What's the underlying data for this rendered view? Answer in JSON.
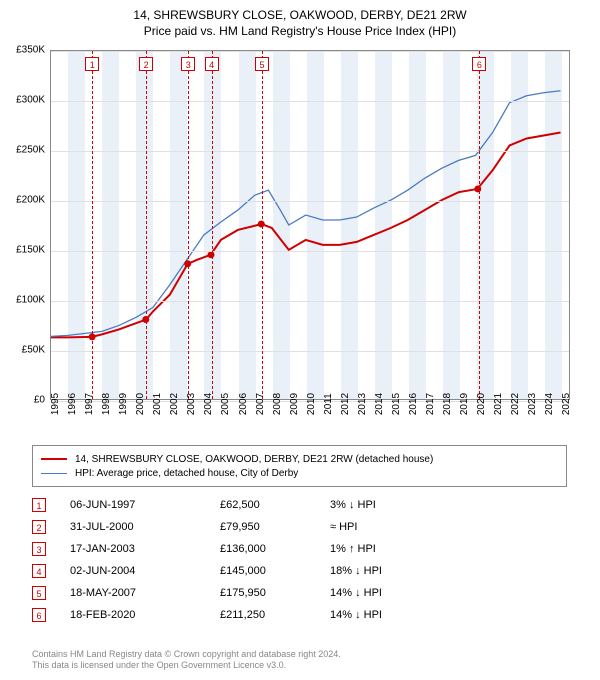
{
  "title_line1": "14, SHREWSBURY CLOSE, OAKWOOD, DERBY, DE21 2RW",
  "title_line2": "Price paid vs. HM Land Registry's House Price Index (HPI)",
  "chart": {
    "type": "line",
    "x_years": [
      1995,
      1996,
      1997,
      1998,
      1999,
      2000,
      2001,
      2002,
      2003,
      2004,
      2005,
      2006,
      2007,
      2008,
      2009,
      2010,
      2011,
      2012,
      2013,
      2014,
      2015,
      2016,
      2017,
      2018,
      2019,
      2020,
      2021,
      2022,
      2023,
      2024,
      2025
    ],
    "xlim": [
      1995,
      2025.5
    ],
    "ylim": [
      0,
      350000
    ],
    "ytick_step": 50000,
    "ytick_labels": [
      "£0",
      "£50K",
      "£100K",
      "£150K",
      "£200K",
      "£250K",
      "£300K",
      "£350K"
    ],
    "background_color": "#ffffff",
    "grid_color": "#e0e0e0",
    "band_color": "#eaf0f8",
    "band_years": [
      [
        1996,
        1997
      ],
      [
        1998,
        1999
      ],
      [
        2000,
        2001
      ],
      [
        2002,
        2003
      ],
      [
        2004,
        2005
      ],
      [
        2006,
        2007
      ],
      [
        2008,
        2009
      ],
      [
        2010,
        2011
      ],
      [
        2012,
        2013
      ],
      [
        2014,
        2015
      ],
      [
        2016,
        2017
      ],
      [
        2018,
        2019
      ],
      [
        2020,
        2021
      ],
      [
        2022,
        2023
      ],
      [
        2024,
        2025
      ]
    ],
    "series": [
      {
        "name": "property",
        "color": "#d00000",
        "width": 2,
        "points": [
          [
            1995,
            62000
          ],
          [
            1996,
            62000
          ],
          [
            1997.4,
            62500
          ],
          [
            1998,
            65000
          ],
          [
            1999,
            70000
          ],
          [
            2000.6,
            79950
          ],
          [
            2001,
            88000
          ],
          [
            2002,
            105000
          ],
          [
            2003.05,
            136000
          ],
          [
            2003.6,
            140000
          ],
          [
            2004.4,
            145000
          ],
          [
            2005,
            160000
          ],
          [
            2006,
            170000
          ],
          [
            2007.4,
            175950
          ],
          [
            2008,
            172000
          ],
          [
            2009,
            150000
          ],
          [
            2010,
            160000
          ],
          [
            2011,
            155000
          ],
          [
            2012,
            155000
          ],
          [
            2013,
            158000
          ],
          [
            2014,
            165000
          ],
          [
            2015,
            172000
          ],
          [
            2016,
            180000
          ],
          [
            2017,
            190000
          ],
          [
            2018,
            200000
          ],
          [
            2019,
            208000
          ],
          [
            2020.1,
            211250
          ],
          [
            2021,
            230000
          ],
          [
            2022,
            255000
          ],
          [
            2023,
            262000
          ],
          [
            2024,
            265000
          ],
          [
            2025,
            268000
          ]
        ]
      },
      {
        "name": "hpi",
        "color": "#4a7bc0",
        "width": 1.3,
        "points": [
          [
            1995,
            63000
          ],
          [
            1996,
            64000
          ],
          [
            1997,
            66000
          ],
          [
            1998,
            68000
          ],
          [
            1999,
            74000
          ],
          [
            2000,
            82000
          ],
          [
            2001,
            92000
          ],
          [
            2002,
            115000
          ],
          [
            2003,
            140000
          ],
          [
            2004,
            165000
          ],
          [
            2005,
            178000
          ],
          [
            2006,
            190000
          ],
          [
            2007,
            205000
          ],
          [
            2007.8,
            210000
          ],
          [
            2008.5,
            190000
          ],
          [
            2009,
            175000
          ],
          [
            2010,
            185000
          ],
          [
            2011,
            180000
          ],
          [
            2012,
            180000
          ],
          [
            2013,
            183000
          ],
          [
            2014,
            192000
          ],
          [
            2015,
            200000
          ],
          [
            2016,
            210000
          ],
          [
            2017,
            222000
          ],
          [
            2018,
            232000
          ],
          [
            2019,
            240000
          ],
          [
            2020,
            245000
          ],
          [
            2021,
            268000
          ],
          [
            2022,
            298000
          ],
          [
            2023,
            305000
          ],
          [
            2024,
            308000
          ],
          [
            2025,
            310000
          ]
        ]
      }
    ],
    "markers": [
      {
        "n": "1",
        "year": 1997.42,
        "price": 62500
      },
      {
        "n": "2",
        "year": 2000.58,
        "price": 79950
      },
      {
        "n": "3",
        "year": 2003.05,
        "price": 136000
      },
      {
        "n": "4",
        "year": 2004.42,
        "price": 145000
      },
      {
        "n": "5",
        "year": 2007.38,
        "price": 175950
      },
      {
        "n": "6",
        "year": 2020.13,
        "price": 211250
      }
    ]
  },
  "legend": {
    "items": [
      {
        "color": "#d00000",
        "width": 2,
        "label": "14, SHREWSBURY CLOSE, OAKWOOD, DERBY, DE21 2RW (detached house)"
      },
      {
        "color": "#4a7bc0",
        "width": 1.3,
        "label": "HPI: Average price, detached house, City of Derby"
      }
    ]
  },
  "transactions": [
    {
      "n": "1",
      "date": "06-JUN-1997",
      "price": "£62,500",
      "hpi": "3% ↓ HPI"
    },
    {
      "n": "2",
      "date": "31-JUL-2000",
      "price": "£79,950",
      "hpi": "≈ HPI"
    },
    {
      "n": "3",
      "date": "17-JAN-2003",
      "price": "£136,000",
      "hpi": "1% ↑ HPI"
    },
    {
      "n": "4",
      "date": "02-JUN-2004",
      "price": "£145,000",
      "hpi": "18% ↓ HPI"
    },
    {
      "n": "5",
      "date": "18-MAY-2007",
      "price": "£175,950",
      "hpi": "14% ↓ HPI"
    },
    {
      "n": "6",
      "date": "18-FEB-2020",
      "price": "£211,250",
      "hpi": "14% ↓ HPI"
    }
  ],
  "footer_line1": "Contains HM Land Registry data © Crown copyright and database right 2024.",
  "footer_line2": "This data is licensed under the Open Government Licence v3.0."
}
